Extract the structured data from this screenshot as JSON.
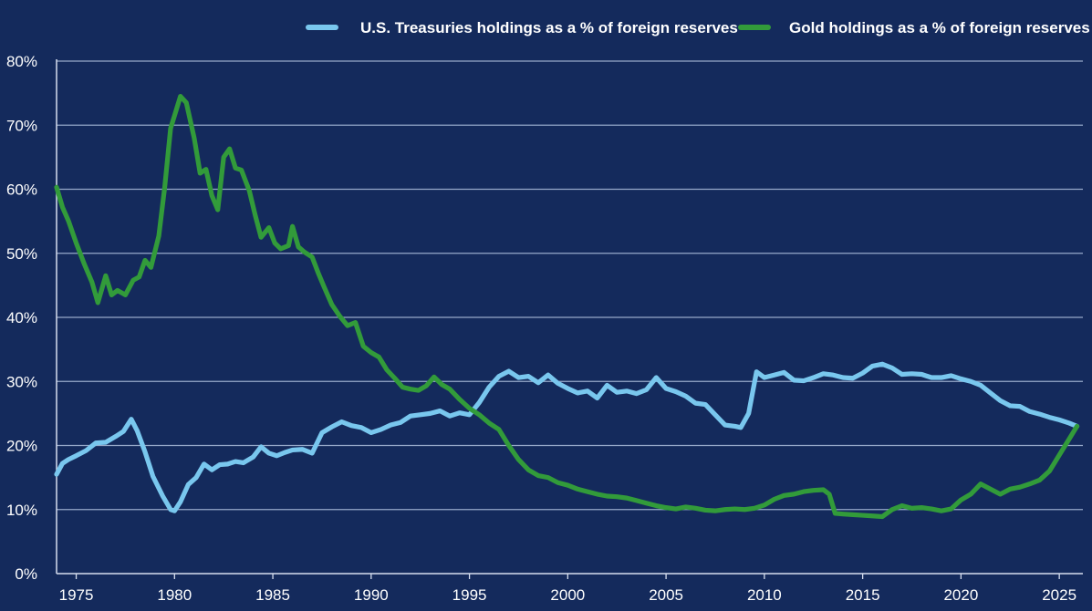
{
  "chart_data": {
    "type": "line",
    "title": "",
    "xlabel": "",
    "ylabel": "",
    "xlim": [
      1974.0,
      2026.2
    ],
    "ylim": [
      0,
      80
    ],
    "grid": true,
    "legend_position": "top-right",
    "x_ticks": [
      1975,
      1980,
      1985,
      1990,
      1995,
      2000,
      2005,
      2010,
      2015,
      2020,
      2025
    ],
    "y_ticks": [
      0,
      10,
      20,
      30,
      40,
      50,
      60,
      70,
      80
    ],
    "x_tick_labels": [
      "1975",
      "1980",
      "1985",
      "1990",
      "1995",
      "2000",
      "2005",
      "2010",
      "2015",
      "2020",
      "2025"
    ],
    "y_tick_labels": [
      "0%",
      "10%",
      "20%",
      "30%",
      "40%",
      "50%",
      "60%",
      "70%",
      "80%"
    ],
    "colors": {
      "background": "#142a5c",
      "grid": "#9fb0d0",
      "axis": "#d6deef",
      "treasuries": "#79c7ee",
      "gold": "#329b3a",
      "text": "#ffffff"
    },
    "series": [
      {
        "name": "U.S. Treasuries holdings as a % of foreign reserves",
        "color_key": "treasuries",
        "x": [
          1974.0,
          1974.3,
          1974.6,
          1975.0,
          1975.5,
          1976.0,
          1976.5,
          1977.0,
          1977.4,
          1977.8,
          1978.1,
          1978.5,
          1978.9,
          1979.4,
          1979.8,
          1980.0,
          1980.3,
          1980.7,
          1981.1,
          1981.5,
          1981.9,
          1982.3,
          1982.7,
          1983.1,
          1983.5,
          1984.0,
          1984.4,
          1984.8,
          1985.2,
          1985.6,
          1986.0,
          1986.5,
          1987.0,
          1987.5,
          1988.0,
          1988.5,
          1989.0,
          1989.5,
          1990.0,
          1990.5,
          1991.0,
          1991.5,
          1992.0,
          1992.5,
          1993.0,
          1993.5,
          1994.0,
          1994.5,
          1995.0,
          1995.5,
          1996.0,
          1996.5,
          1997.0,
          1997.5,
          1998.0,
          1998.5,
          1999.0,
          1999.5,
          2000.0,
          2000.5,
          2001.0,
          2001.5,
          2002.0,
          2002.5,
          2003.0,
          2003.5,
          2004.0,
          2004.5,
          2005.0,
          2005.5,
          2006.0,
          2006.5,
          2007.0,
          2007.5,
          2008.0,
          2008.5,
          2008.8,
          2009.2,
          2009.6,
          2010.0,
          2010.5,
          2011.0,
          2011.5,
          2012.0,
          2012.5,
          2013.0,
          2013.5,
          2014.0,
          2014.5,
          2015.0,
          2015.5,
          2016.0,
          2016.5,
          2017.0,
          2017.5,
          2018.0,
          2018.5,
          2019.0,
          2019.5,
          2020.0,
          2020.5,
          2021.0,
          2021.5,
          2022.0,
          2022.5,
          2023.0,
          2023.5,
          2024.0,
          2024.5,
          2025.0,
          2025.5,
          2025.9
        ],
        "y": [
          15.5,
          17.2,
          17.8,
          18.4,
          19.2,
          20.4,
          20.5,
          21.4,
          22.2,
          24.1,
          22.3,
          19.0,
          15.2,
          12.1,
          10.0,
          9.8,
          11.2,
          13.9,
          15.0,
          17.1,
          16.2,
          17.0,
          17.1,
          17.5,
          17.3,
          18.2,
          19.8,
          18.8,
          18.4,
          18.9,
          19.3,
          19.4,
          18.8,
          22.0,
          22.9,
          23.7,
          23.1,
          22.8,
          22.0,
          22.5,
          23.2,
          23.6,
          24.6,
          24.8,
          25.0,
          25.4,
          24.6,
          25.1,
          24.8,
          26.7,
          29.1,
          30.8,
          31.6,
          30.6,
          30.8,
          29.8,
          31.0,
          29.7,
          28.9,
          28.2,
          28.5,
          27.4,
          29.4,
          28.3,
          28.5,
          28.1,
          28.7,
          30.6,
          28.9,
          28.4,
          27.7,
          26.6,
          26.4,
          24.8,
          23.2,
          23.0,
          22.8,
          25.0,
          31.5,
          30.6,
          31.0,
          31.4,
          30.2,
          30.1,
          30.6,
          31.2,
          31.0,
          30.6,
          30.5,
          31.3,
          32.4,
          32.7,
          32.1,
          31.1,
          31.2,
          31.1,
          30.6,
          30.6,
          30.9,
          30.4,
          30.0,
          29.4,
          28.2,
          27.0,
          26.2,
          26.1,
          25.3,
          24.9,
          24.4,
          24.0,
          23.5,
          23.0
        ]
      },
      {
        "name": "Gold holdings as a % of foreign reserves",
        "color_key": "gold",
        "x": [
          1974.0,
          1974.3,
          1974.6,
          1975.0,
          1975.4,
          1975.8,
          1976.1,
          1976.5,
          1976.8,
          1977.1,
          1977.5,
          1977.9,
          1978.2,
          1978.5,
          1978.8,
          1979.2,
          1979.5,
          1979.8,
          1980.0,
          1980.3,
          1980.6,
          1981.0,
          1981.3,
          1981.6,
          1981.9,
          1982.2,
          1982.5,
          1982.8,
          1983.1,
          1983.4,
          1983.8,
          1984.1,
          1984.4,
          1984.8,
          1985.1,
          1985.4,
          1985.8,
          1986.0,
          1986.3,
          1986.6,
          1987.0,
          1987.3,
          1987.6,
          1988.0,
          1988.4,
          1988.8,
          1989.2,
          1989.6,
          1990.0,
          1990.4,
          1990.8,
          1991.2,
          1991.6,
          1992.0,
          1992.4,
          1992.8,
          1993.2,
          1993.6,
          1994.0,
          1994.5,
          1995.0,
          1995.5,
          1996.0,
          1996.5,
          1997.0,
          1997.5,
          1998.0,
          1998.5,
          1999.0,
          1999.5,
          2000.0,
          2000.5,
          2001.0,
          2001.5,
          2002.0,
          2002.5,
          2003.0,
          2003.5,
          2004.0,
          2004.5,
          2005.0,
          2005.5,
          2006.0,
          2006.5,
          2007.0,
          2007.5,
          2008.0,
          2008.5,
          2009.0,
          2009.5,
          2010.0,
          2010.5,
          2011.0,
          2011.5,
          2012.0,
          2012.5,
          2013.0,
          2013.3,
          2013.6,
          2014.0,
          2014.5,
          2015.0,
          2015.5,
          2016.0,
          2016.5,
          2017.0,
          2017.5,
          2018.0,
          2018.5,
          2019.0,
          2019.5,
          2020.0,
          2020.5,
          2021.0,
          2021.5,
          2022.0,
          2022.5,
          2023.0,
          2023.5,
          2024.0,
          2024.5,
          2025.0,
          2025.5,
          2025.9
        ],
        "y": [
          60.3,
          57.2,
          55.1,
          51.6,
          48.4,
          45.5,
          42.3,
          46.5,
          43.5,
          44.2,
          43.5,
          45.8,
          46.3,
          48.9,
          47.8,
          52.7,
          60.3,
          69.5,
          71.5,
          74.5,
          73.5,
          68.0,
          62.5,
          63.1,
          59.0,
          56.8,
          65.0,
          66.3,
          63.3,
          63.0,
          59.8,
          56.0,
          52.5,
          54.0,
          51.6,
          50.7,
          51.2,
          54.2,
          51.0,
          50.2,
          49.4,
          47.0,
          44.8,
          42.0,
          40.2,
          38.7,
          39.2,
          35.5,
          34.5,
          33.8,
          31.8,
          30.5,
          29.1,
          28.8,
          28.6,
          29.3,
          30.7,
          29.5,
          28.8,
          27.2,
          25.8,
          24.8,
          23.5,
          22.5,
          20.0,
          17.8,
          16.2,
          15.3,
          15.0,
          14.2,
          13.8,
          13.2,
          12.8,
          12.4,
          12.1,
          12.0,
          11.8,
          11.4,
          11.0,
          10.6,
          10.3,
          10.1,
          10.4,
          10.2,
          9.9,
          9.8,
          10.0,
          10.1,
          10.0,
          10.2,
          10.7,
          11.6,
          12.2,
          12.4,
          12.8,
          13.0,
          13.1,
          12.4,
          9.4,
          9.3,
          9.2,
          9.1,
          9.0,
          8.9,
          10.0,
          10.6,
          10.2,
          10.3,
          10.1,
          9.8,
          10.1,
          11.5,
          12.4,
          14.0,
          13.2,
          12.4,
          13.2,
          13.5,
          14.0,
          14.6,
          16.0,
          18.5,
          21.0,
          23.0
        ]
      }
    ]
  }
}
